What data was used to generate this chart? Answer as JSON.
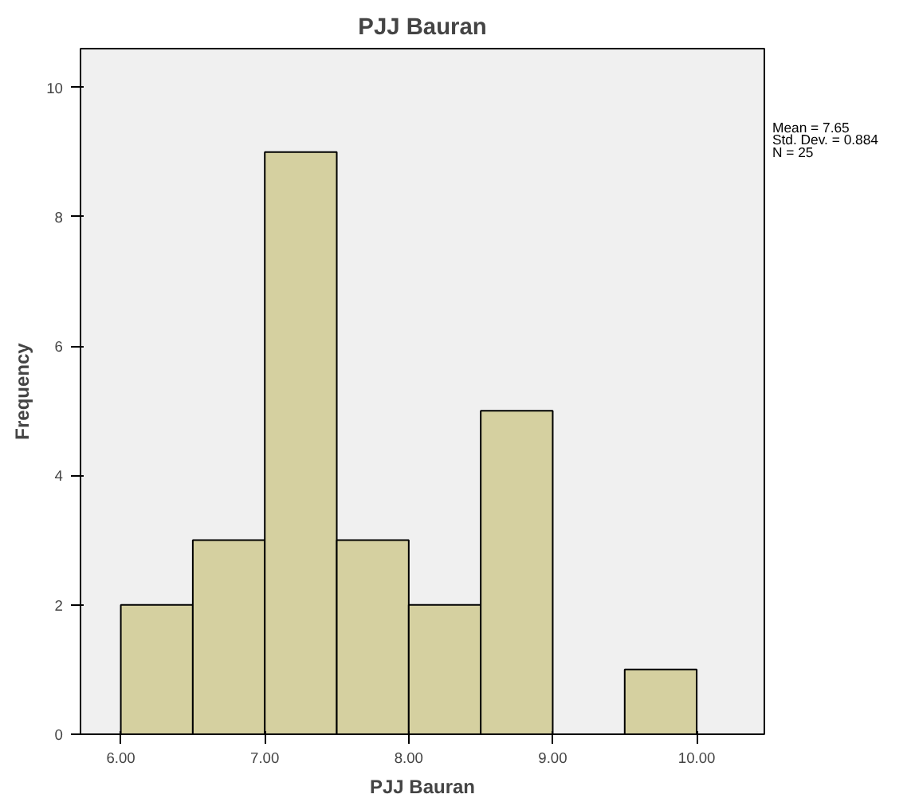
{
  "chart_data": {
    "type": "histogram",
    "title": "PJJ Bauran",
    "xlabel": "PJJ Bauran",
    "ylabel": "Frequency",
    "bins": [
      6.0,
      6.5,
      7.0,
      7.5,
      8.0,
      8.5,
      9.0,
      9.5,
      10.0
    ],
    "values": [
      2,
      3,
      9,
      3,
      2,
      5,
      0,
      1
    ],
    "color": "#d5d0a0",
    "xlim": [
      5.72,
      10.47
    ],
    "ylim": [
      0,
      10.6
    ],
    "xticks": [
      {
        "value": 6,
        "label": "6.00"
      },
      {
        "value": 7,
        "label": "7.00"
      },
      {
        "value": 8,
        "label": "8.00"
      },
      {
        "value": 9,
        "label": "9.00"
      },
      {
        "value": 10,
        "label": "10.00"
      }
    ],
    "yticks": [
      0,
      2,
      4,
      6,
      8,
      10
    ],
    "grid": false,
    "annotations": [
      "Mean = 7.65",
      "Std. Dev. = 0.884",
      "N = 25"
    ]
  }
}
